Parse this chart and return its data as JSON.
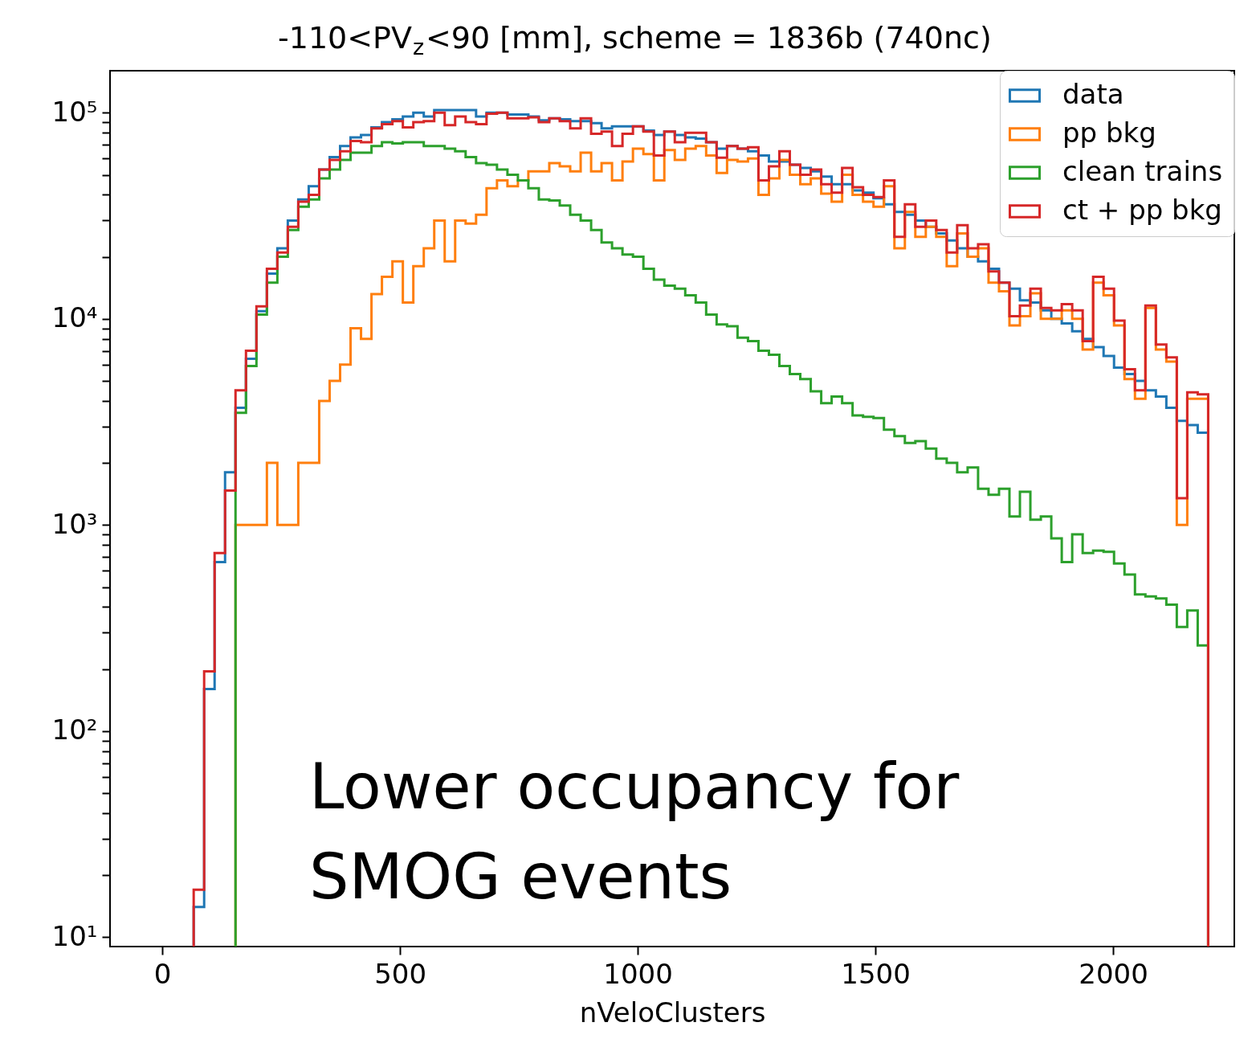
{
  "chart_data": {
    "type": "histogram",
    "title": "-110<PV$_{z}$<90 [mm], scheme = 1836b (740nc)",
    "xlabel": "nVeloClusters",
    "annotations": [
      "Lower occupancy for\nSMOG events"
    ],
    "log": "y",
    "legend": "top right",
    "xlim": [
      -110,
      2255
    ],
    "xticks": [
      0,
      500,
      1000,
      1500,
      2000
    ],
    "ylim": [
      9,
      160000
    ],
    "yticks": [
      {
        "value": 10,
        "label": "10¹"
      },
      {
        "value": 20,
        "label": null
      },
      {
        "value": 30,
        "label": null
      },
      {
        "value": 40,
        "label": null
      },
      {
        "value": 50,
        "label": null
      },
      {
        "value": 60,
        "label": null
      },
      {
        "value": 70,
        "label": null
      },
      {
        "value": 80,
        "label": null
      },
      {
        "value": 90,
        "label": null
      },
      {
        "value": 100,
        "label": "10²"
      },
      {
        "value": 200,
        "label": null
      },
      {
        "value": 300,
        "label": null
      },
      {
        "value": 400,
        "label": null
      },
      {
        "value": 500,
        "label": null
      },
      {
        "value": 600,
        "label": null
      },
      {
        "value": 700,
        "label": null
      },
      {
        "value": 800,
        "label": null
      },
      {
        "value": 900,
        "label": null
      },
      {
        "value": 1000,
        "label": "10³"
      },
      {
        "value": 2000,
        "label": null
      },
      {
        "value": 3000,
        "label": null
      },
      {
        "value": 4000,
        "label": null
      },
      {
        "value": 5000,
        "label": null
      },
      {
        "value": 6000,
        "label": null
      },
      {
        "value": 7000,
        "label": null
      },
      {
        "value": 8000,
        "label": null
      },
      {
        "value": 9000,
        "label": null
      },
      {
        "value": 10000,
        "label": "10⁴"
      },
      {
        "value": 20000,
        "label": null
      },
      {
        "value": 30000,
        "label": null
      },
      {
        "value": 40000,
        "label": null
      },
      {
        "value": 50000,
        "label": null
      },
      {
        "value": 60000,
        "label": null
      },
      {
        "value": 70000,
        "label": null
      },
      {
        "value": 80000,
        "label": null
      },
      {
        "value": 90000,
        "label": null
      },
      {
        "value": 100000,
        "label": "10⁵"
      }
    ],
    "bins": [
      66,
      88,
      110,
      132,
      154,
      176,
      198,
      220,
      242,
      264,
      286,
      308,
      330,
      352,
      374,
      396,
      418,
      440,
      462,
      484,
      506,
      528,
      550,
      572,
      594,
      616,
      638,
      660,
      682,
      704,
      726,
      748,
      770,
      792,
      814,
      836,
      858,
      880,
      902,
      924,
      946,
      968,
      990,
      1012,
      1034,
      1056,
      1078,
      1100,
      1122,
      1144,
      1166,
      1188,
      1210,
      1232,
      1254,
      1276,
      1298,
      1320,
      1342,
      1364,
      1386,
      1408,
      1430,
      1452,
      1474,
      1496,
      1518,
      1540,
      1562,
      1584,
      1606,
      1628,
      1650,
      1672,
      1694,
      1716,
      1738,
      1760,
      1782,
      1804,
      1826,
      1848,
      1870,
      1892,
      1914,
      1936,
      1958,
      1980,
      2002,
      2024,
      2046,
      2068,
      2090,
      2112,
      2134,
      2156,
      2178,
      2200
    ],
    "series": [
      {
        "name": "data",
        "color": "#1f77b4",
        "values": [
          14,
          160,
          660,
          1800,
          3700,
          6400,
          10900,
          16600,
          22000,
          30000,
          38000,
          44000,
          53000,
          61000,
          69000,
          76000,
          78000,
          85000,
          90000,
          93000,
          96000,
          100000,
          96000,
          103000,
          103000,
          103000,
          103000,
          96000,
          100000,
          100000,
          98000,
          98000,
          96000,
          92000,
          94000,
          93000,
          91000,
          91000,
          89000,
          84000,
          86000,
          86000,
          86000,
          82000,
          78000,
          81000,
          78000,
          76000,
          75000,
          72000,
          67000,
          69000,
          67000,
          65000,
          62000,
          58000,
          58000,
          56000,
          54000,
          52000,
          49000,
          45000,
          45000,
          42000,
          41000,
          38500,
          36000,
          33000,
          32000,
          30000,
          28000,
          26000,
          24000,
          22000,
          20000,
          19000,
          17500,
          15000,
          14000,
          12300,
          12000,
          11000,
          10000,
          9500,
          8700,
          8000,
          7300,
          6600,
          5800,
          5400,
          5000,
          4500,
          4200,
          3700,
          3200,
          3050,
          2800
        ]
      },
      {
        "name": "pp bkg",
        "color": "#ff7f0e",
        "bins": [
          154,
          176,
          198,
          220,
          242,
          264,
          286,
          308,
          330,
          352,
          374,
          396,
          418,
          440,
          462,
          484,
          506,
          528,
          550,
          572,
          594,
          616,
          638,
          660,
          682,
          704,
          726,
          748,
          770,
          792,
          814,
          836,
          858,
          880,
          902,
          924,
          946,
          968,
          990,
          1012,
          1034,
          1056,
          1078,
          1100,
          1122,
          1144,
          1166,
          1188,
          1210,
          1232,
          1254,
          1276,
          1298,
          1320,
          1342,
          1364,
          1386,
          1408,
          1430,
          1452,
          1474,
          1496,
          1518,
          1540,
          1562,
          1584,
          1606,
          1628,
          1650,
          1672,
          1694,
          1716,
          1738,
          1760,
          1782,
          1804,
          1826,
          1848,
          1870,
          1892,
          1914,
          1936,
          1958,
          1980,
          2002,
          2024,
          2046,
          2068,
          2090,
          2112,
          2134,
          2156,
          2178,
          2200
        ],
        "values": [
          1000,
          1000,
          1000,
          2000,
          1000,
          1000,
          2000,
          2000,
          4000,
          5000,
          6000,
          9000,
          8000,
          13200,
          16000,
          19000,
          12000,
          18000,
          22000,
          30000,
          19000,
          30000,
          29000,
          32000,
          43000,
          47000,
          44000,
          47000,
          52000,
          52000,
          57000,
          55000,
          52000,
          64000,
          52000,
          57000,
          47000,
          58000,
          67000,
          63000,
          47000,
          66000,
          59000,
          67000,
          69000,
          62000,
          51000,
          59000,
          58000,
          60000,
          40000,
          48000,
          59000,
          50000,
          45000,
          48000,
          40500,
          37000,
          50000,
          40000,
          37000,
          35000,
          44000,
          22000,
          33000,
          25000,
          28000,
          25000,
          18000,
          26000,
          20000,
          22000,
          15000,
          13600,
          9300,
          10300,
          13300,
          10000,
          10000,
          11000,
          10000,
          7100,
          15000,
          13000,
          9300,
          5100,
          4100,
          11300,
          7100,
          6200,
          1000,
          4100,
          4100
        ]
      },
      {
        "name": "clean trains",
        "color": "#2ca02c",
        "bins": [
          154,
          176,
          198,
          220,
          242,
          264,
          286,
          308,
          330,
          352,
          374,
          396,
          418,
          440,
          462,
          484,
          506,
          528,
          550,
          572,
          594,
          616,
          638,
          660,
          682,
          704,
          726,
          748,
          770,
          792,
          814,
          836,
          858,
          880,
          902,
          924,
          946,
          968,
          990,
          1012,
          1034,
          1056,
          1078,
          1100,
          1122,
          1144,
          1166,
          1188,
          1210,
          1232,
          1254,
          1276,
          1298,
          1320,
          1342,
          1364,
          1386,
          1408,
          1430,
          1452,
          1474,
          1496,
          1518,
          1540,
          1562,
          1584,
          1606,
          1628,
          1650,
          1672,
          1694,
          1716,
          1738,
          1760,
          1782,
          1804,
          1826,
          1848,
          1870,
          1892,
          1914,
          1936,
          1958,
          1980,
          2002,
          2024,
          2046,
          2068,
          2090,
          2112,
          2134,
          2156,
          2178,
          2200
        ],
        "values": [
          3500,
          5900,
          10500,
          15000,
          20000,
          27000,
          35000,
          38000,
          48000,
          53000,
          59000,
          64000,
          64000,
          69000,
          72000,
          71000,
          72000,
          72000,
          69000,
          69000,
          67000,
          65000,
          61000,
          57000,
          56000,
          53000,
          50000,
          47000,
          43000,
          38000,
          37500,
          35500,
          32000,
          30000,
          27000,
          23500,
          22000,
          20500,
          20000,
          17500,
          15500,
          14500,
          14000,
          13000,
          12000,
          10500,
          9400,
          9200,
          8100,
          7800,
          7000,
          6700,
          5900,
          5400,
          5100,
          4450,
          3900,
          4200,
          3900,
          3400,
          3350,
          3300,
          2900,
          2700,
          2500,
          2550,
          2350,
          2100,
          2000,
          1800,
          1900,
          1500,
          1400,
          1500,
          1100,
          1450,
          1060,
          1100,
          860,
          660,
          900,
          730,
          750,
          740,
          650,
          575,
          460,
          450,
          440,
          410,
          320,
          385,
          260
        ]
      },
      {
        "name": "ct + pp bkg",
        "color": "#d62728",
        "values": [
          17,
          195,
          730,
          1470,
          4500,
          7000,
          11500,
          17500,
          21000,
          28000,
          37000,
          40000,
          53000,
          59000,
          65000,
          73000,
          72000,
          84000,
          88000,
          91000,
          85000,
          90000,
          91000,
          100000,
          87000,
          96000,
          90000,
          88000,
          99000,
          100000,
          94000,
          94000,
          95000,
          90000,
          94000,
          91000,
          84000,
          94000,
          79000,
          81000,
          69000,
          79000,
          86000,
          81000,
          62000,
          81000,
          72000,
          80000,
          80000,
          72000,
          60500,
          69000,
          67000,
          68000,
          47000,
          55000,
          65000,
          56000,
          50000,
          53000,
          45000,
          41000,
          54000,
          43500,
          40000,
          39000,
          47000,
          25000,
          36000,
          28000,
          30000,
          27000,
          21000,
          28500,
          22000,
          23000,
          17000,
          15000,
          10300,
          11600,
          14000,
          11300,
          11000,
          11800,
          11000,
          7800,
          16000,
          14000,
          9800,
          5700,
          4500,
          11600,
          7500,
          6500,
          1350,
          4400,
          4300
        ]
      }
    ]
  }
}
